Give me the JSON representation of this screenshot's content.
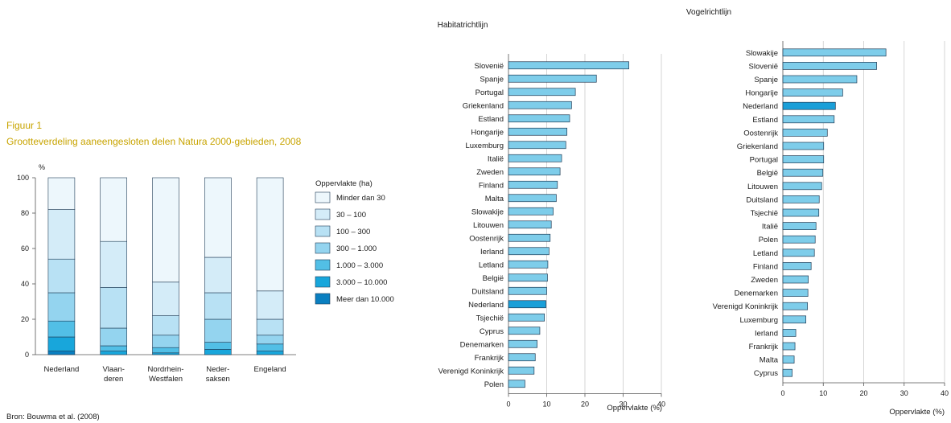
{
  "figure": {
    "label": "Figuur 1",
    "title": "Grootteverdeling aaneengesloten delen Natura 2000-gebieden, 2008",
    "source": "Bron: Bouwma et al. (2008)"
  },
  "colors": {
    "bar_fill": "#7ecdea",
    "bar_highlight": "#1a9fd8",
    "bar_stroke": "#1f3b55",
    "grid": "#cccccc",
    "title_accent": "#c8a400"
  },
  "chart_data": [
    {
      "type": "bar",
      "stacked": true,
      "orientation": "vertical",
      "ylabel": "%",
      "ylim": [
        0,
        100
      ],
      "yticks": [
        0,
        20,
        40,
        60,
        80,
        100
      ],
      "categories": [
        [
          "Nederland"
        ],
        [
          "Vlaan-",
          "deren"
        ],
        [
          "Nordrhein-",
          "Westfalen"
        ],
        [
          "Neder-",
          "saksen"
        ],
        [
          "Engeland"
        ]
      ],
      "legend_title": "Oppervlakte (ha)",
      "legend_position": "right",
      "series": [
        {
          "name": "Meer dan 10.000",
          "color": "#0a7fc0",
          "values": [
            2,
            0,
            0,
            0,
            0
          ]
        },
        {
          "name": "3.000 – 10.000",
          "color": "#18a6db",
          "values": [
            8,
            2,
            1,
            3,
            2
          ]
        },
        {
          "name": "1.000 – 3.000",
          "color": "#52bfe6",
          "values": [
            9,
            3,
            3,
            4,
            4
          ]
        },
        {
          "name": "300 – 1.000",
          "color": "#94d4ef",
          "values": [
            16,
            10,
            7,
            13,
            5
          ]
        },
        {
          "name": "100 – 300",
          "color": "#b8e1f4",
          "values": [
            19,
            23,
            11,
            15,
            9
          ]
        },
        {
          "name": "30 – 100",
          "color": "#d4ecf8",
          "values": [
            28,
            26,
            19,
            20,
            16
          ]
        },
        {
          "name": "Minder dan 30",
          "color": "#edf7fc",
          "values": [
            18,
            36,
            59,
            45,
            64
          ]
        }
      ]
    },
    {
      "type": "bar",
      "orientation": "horizontal",
      "title": "Habitatrichtlijn",
      "xlabel": "Oppervlakte (%)",
      "xlim": [
        0,
        40
      ],
      "xticks": [
        0,
        10,
        20,
        30,
        40
      ],
      "highlight": "Nederland",
      "categories": [
        "Slovenië",
        "Spanje",
        "Portugal",
        "Griekenland",
        "Estland",
        "Hongarije",
        "Luxemburg",
        "Italië",
        "Zweden",
        "Finland",
        "Malta",
        "Slowakije",
        "Litouwen",
        "Oostenrijk",
        "Ierland",
        "Letland",
        "België",
        "Duitsland",
        "Nederland",
        "Tsjechië",
        "Cyprus",
        "Denemarken",
        "Frankrijk",
        "Verenigd Koninkrijk",
        "Polen"
      ],
      "values": [
        31.5,
        23,
        17.5,
        16.5,
        16,
        15.3,
        15,
        13.9,
        13.5,
        12.8,
        12.5,
        11.7,
        11.2,
        10.9,
        10.6,
        10.3,
        10.2,
        10.0,
        9.8,
        9.4,
        8.2,
        7.5,
        7.0,
        6.7,
        4.3
      ]
    },
    {
      "type": "bar",
      "orientation": "horizontal",
      "title": "Vogelrichtlijn",
      "xlabel": "Oppervlakte (%)",
      "xlim": [
        0,
        40
      ],
      "xticks": [
        0,
        10,
        20,
        30,
        40
      ],
      "highlight": "Nederland",
      "categories": [
        "Slowakije",
        "Slovenië",
        "Spanje",
        "Hongarije",
        "Nederland",
        "Estland",
        "Oostenrijk",
        "Griekenland",
        "Portugal",
        "België",
        "Litouwen",
        "Duitsland",
        "Tsjechië",
        "Italië",
        "Polen",
        "Letland",
        "Finland",
        "Zweden",
        "Denemarken",
        "Verenigd Koninkrijk",
        "Luxemburg",
        "Ierland",
        "Frankrijk",
        "Malta",
        "Cyprus"
      ],
      "values": [
        25.5,
        23.2,
        18.3,
        14.8,
        13.0,
        12.7,
        11.0,
        10.1,
        10.1,
        9.9,
        9.6,
        9.0,
        8.9,
        8.2,
        8.0,
        7.8,
        7.0,
        6.3,
        6.2,
        6.1,
        5.7,
        3.2,
        3.0,
        2.8,
        2.3
      ]
    }
  ]
}
